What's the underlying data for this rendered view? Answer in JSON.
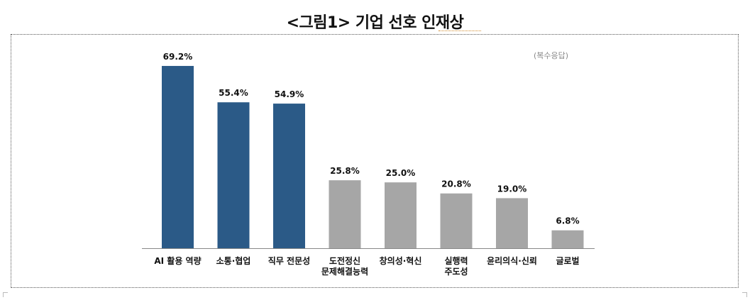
{
  "title": "<그림1> 기업 선호 인재상",
  "note": "(복수응답)",
  "colors": {
    "highlight": "#2b5a87",
    "normal": "#a6a6a6",
    "axis": "#888888"
  },
  "chart_data": {
    "type": "bar",
    "title": "<그림1> 기업 선호 인재상",
    "categories": [
      [
        "AI 활용 역량"
      ],
      [
        "소통·협업"
      ],
      [
        "직무 전문성"
      ],
      [
        "도전정신",
        "문제해결능력"
      ],
      [
        "창의성·혁신"
      ],
      [
        "실행력",
        "주도성"
      ],
      [
        "윤리의식·신뢰"
      ],
      [
        "글로벌"
      ]
    ],
    "values": [
      69.2,
      55.4,
      54.9,
      25.8,
      25.0,
      20.8,
      19.0,
      6.8
    ],
    "value_labels": [
      "69.2%",
      "55.4%",
      "54.9%",
      "25.8%",
      "25.0%",
      "20.8%",
      "19.0%",
      "6.8%"
    ],
    "highlighted": [
      true,
      true,
      true,
      false,
      false,
      false,
      false,
      false
    ],
    "ylim": [
      0,
      70
    ],
    "grid": false,
    "xlabel": "",
    "ylabel": ""
  }
}
